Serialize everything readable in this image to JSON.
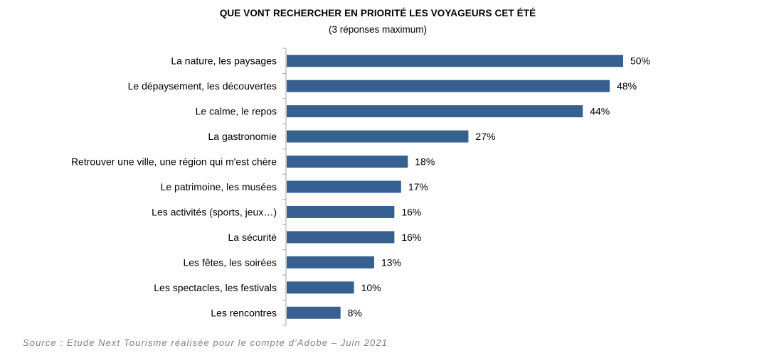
{
  "header": {
    "title": "QUE VONT RECHERCHER EN PRIORITÉ LES VOYAGEURS CET ÉTÉ",
    "subtitle": "(3 réponses maximum)"
  },
  "chart_data": {
    "type": "bar",
    "orientation": "horizontal",
    "title": "QUE VONT RECHERCHER EN PRIORITÉ LES VOYAGEURS CET ÉTÉ",
    "subtitle": "(3 réponses maximum)",
    "categories": [
      "La nature, les paysages",
      "Le dépaysement, les découvertes",
      "Le calme, le repos",
      "La gastronomie",
      "Retrouver une ville, une région qui m'est chère",
      "Le patrimoine, les musées",
      "Les activités (sports, jeux…)",
      "La sécurité",
      "Les fêtes, les soirées",
      "Les spectacles, les festivals",
      "Les rencontres"
    ],
    "values": [
      50,
      48,
      44,
      27,
      18,
      17,
      16,
      16,
      13,
      10,
      8
    ],
    "value_labels": [
      "50%",
      "48%",
      "44%",
      "27%",
      "18%",
      "17%",
      "16%",
      "16%",
      "13%",
      "10%",
      "8%"
    ],
    "unit": "%",
    "xlim": [
      0,
      50
    ],
    "grid": false,
    "bar_color": "#35608f"
  },
  "footer": {
    "source": "Source : Etude Next Tourisme réalisée pour le compte d’Adobe – Juin 2021"
  }
}
